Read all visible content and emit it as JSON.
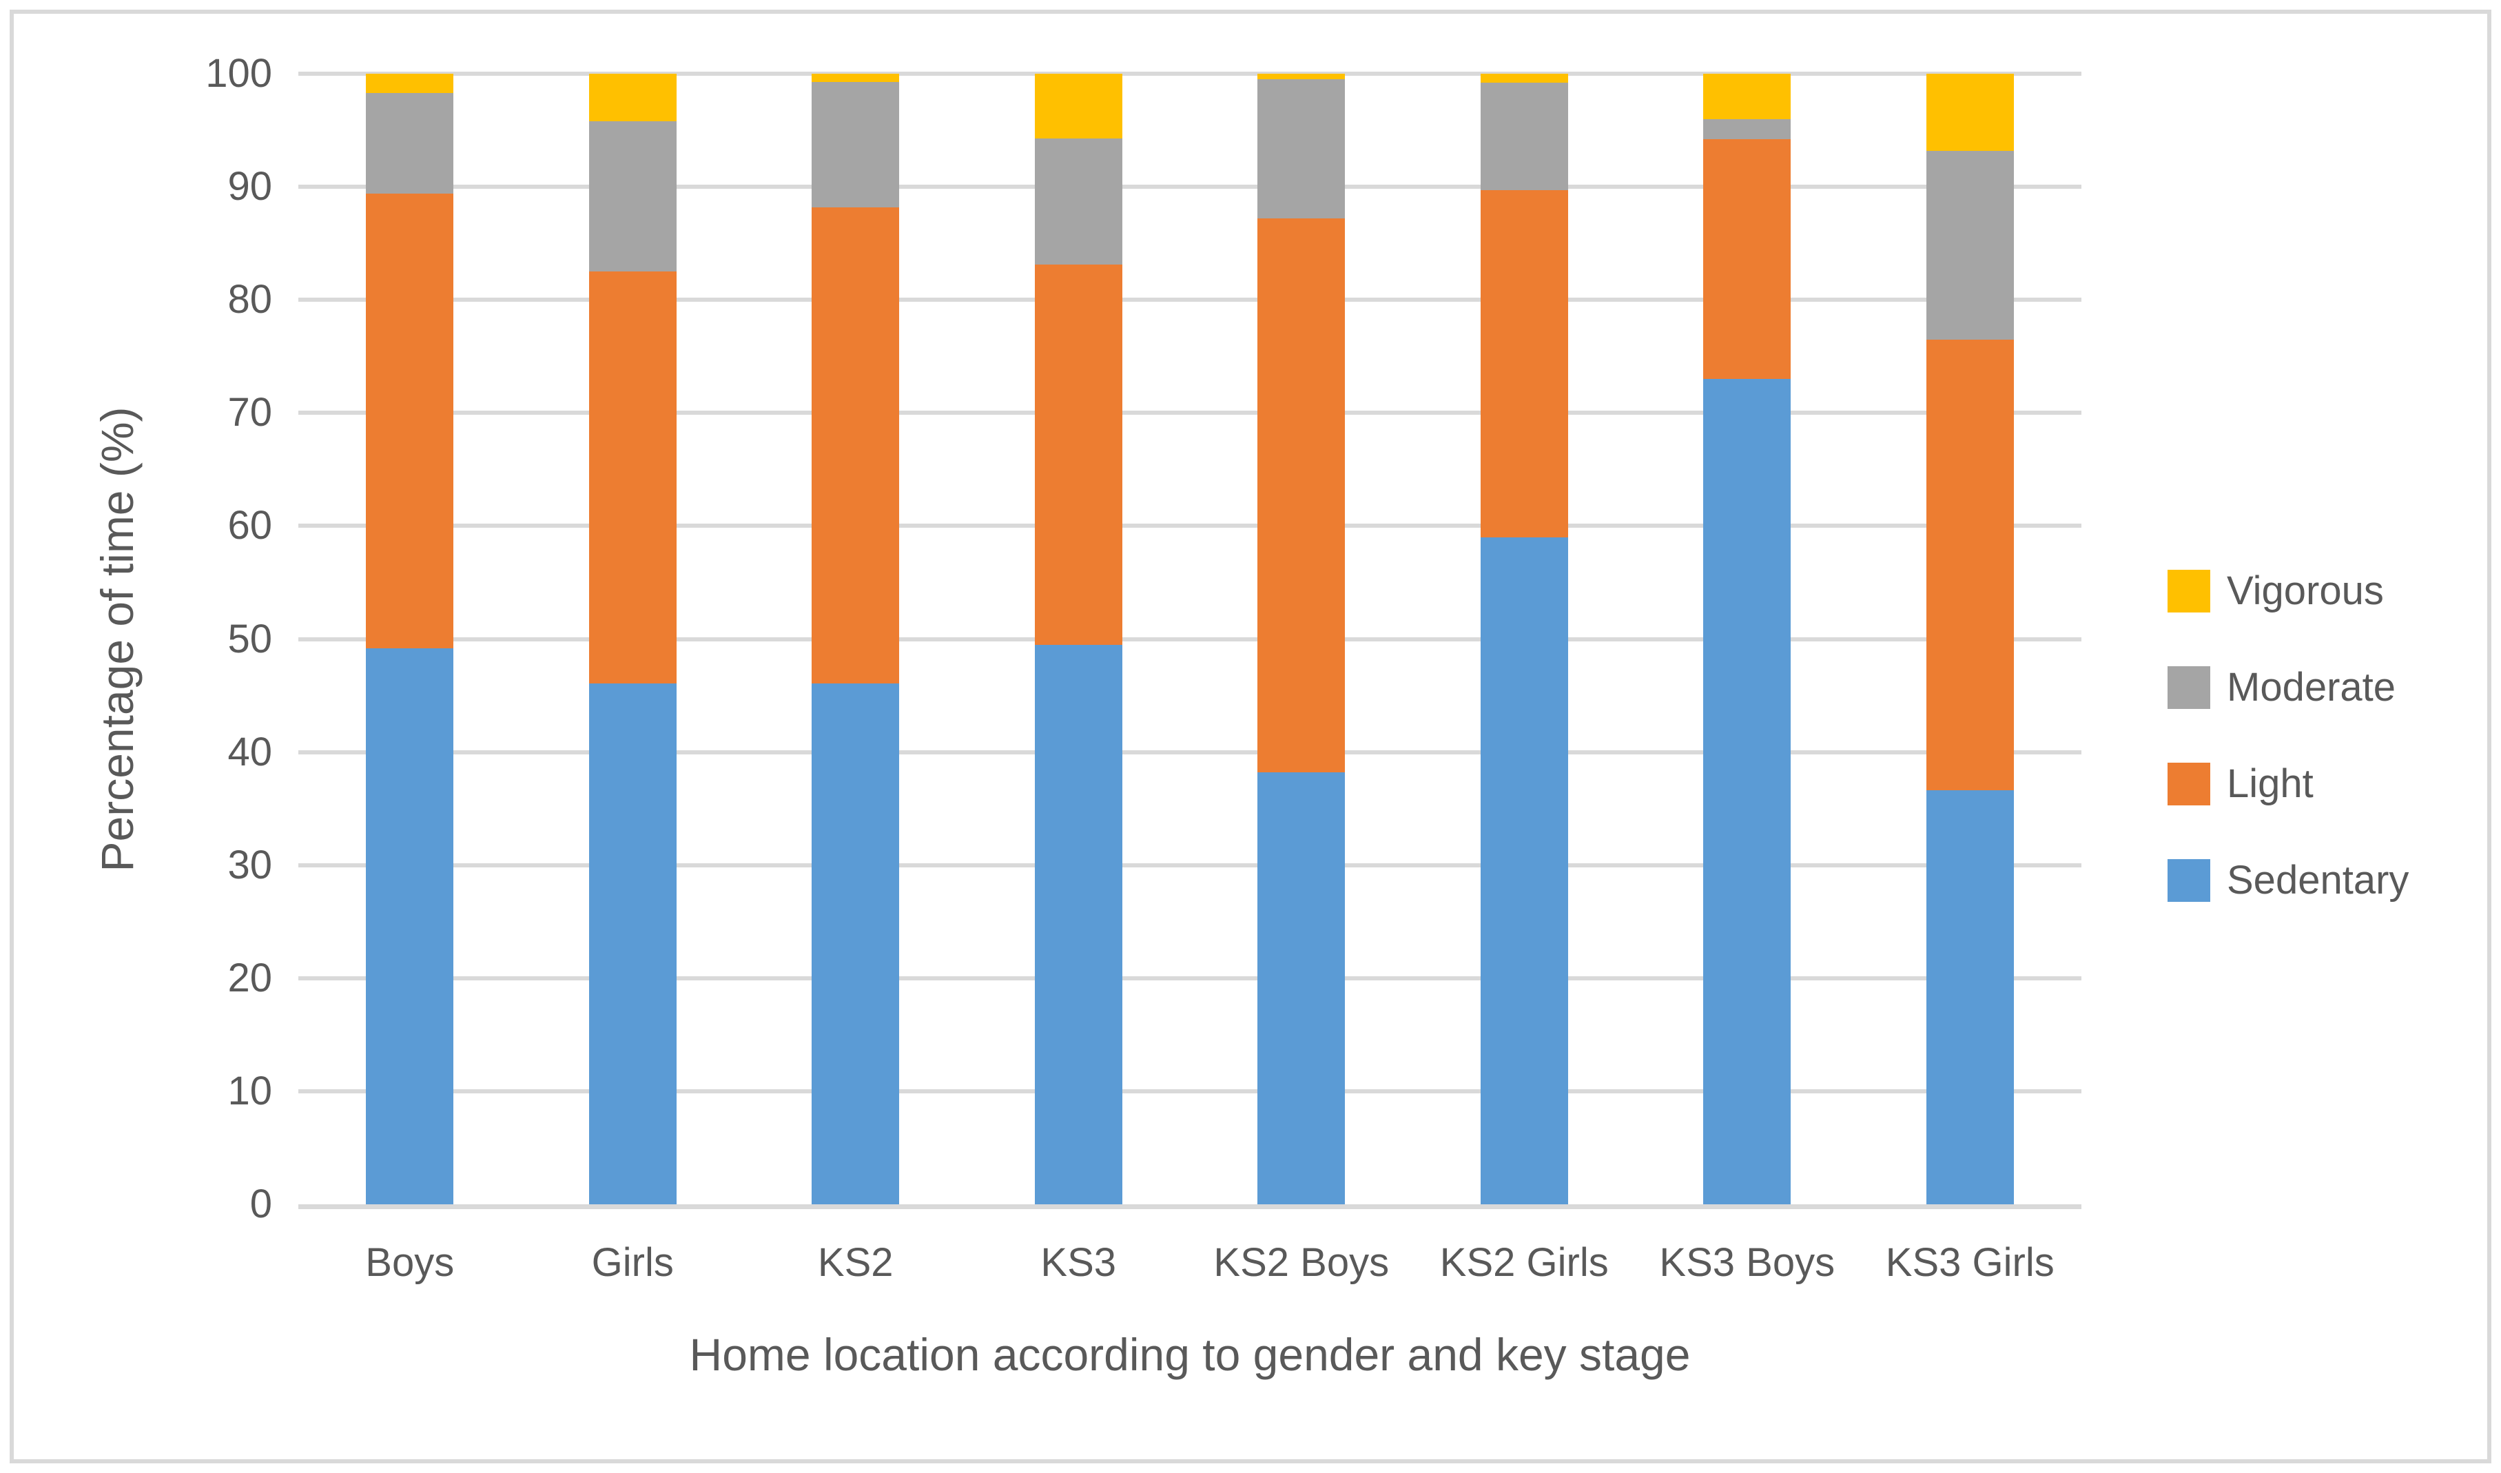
{
  "figure": {
    "background": "#ffffff",
    "border_color": "#d9d9d9"
  },
  "chart_data": {
    "type": "bar",
    "stacked": true,
    "title": "",
    "xlabel": "Home location according to gender and key stage",
    "ylabel": "Percentage of time (%)",
    "categories": [
      "Boys",
      "Girls",
      "KS2",
      "KS3",
      "KS2 Boys",
      "KS2 Girls",
      "KS3 Boys",
      "KS3 Girls"
    ],
    "series": [
      {
        "name": "Sedentary",
        "color": "#5b9bd5",
        "values": [
          49.2,
          46.1,
          46.1,
          49.5,
          38.2,
          59.0,
          73.0,
          36.6
        ]
      },
      {
        "name": "Light",
        "color": "#ed7d31",
        "values": [
          40.2,
          36.4,
          42.1,
          33.6,
          49.0,
          30.7,
          21.2,
          39.9
        ]
      },
      {
        "name": "Moderate",
        "color": "#a5a5a5",
        "values": [
          8.9,
          13.3,
          11.1,
          11.2,
          12.3,
          9.5,
          1.8,
          16.7
        ]
      },
      {
        "name": "Vigorous",
        "color": "#ffc000",
        "values": [
          1.7,
          4.2,
          0.7,
          5.7,
          0.5,
          0.8,
          4.0,
          6.8
        ]
      }
    ],
    "legend": {
      "position": "right",
      "order": [
        "Vigorous",
        "Moderate",
        "Light",
        "Sedentary"
      ]
    },
    "ylim": [
      0,
      100
    ],
    "yticks": [
      0,
      10,
      20,
      30,
      40,
      50,
      60,
      70,
      80,
      90,
      100
    ],
    "grid": true,
    "gridline_color": "#d9d9d9",
    "axis_line_color": "#d9d9d9",
    "text_color": "#595959"
  }
}
